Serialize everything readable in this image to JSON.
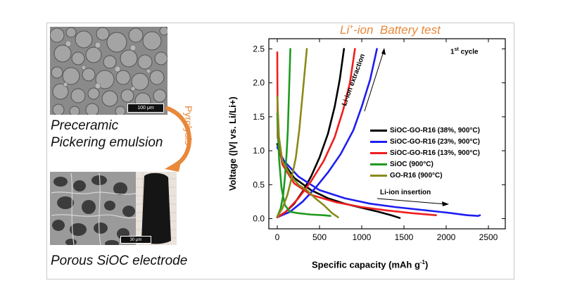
{
  "left_panel": {
    "top_scale": "100 μm",
    "top_caption_line1": "Preceramic",
    "top_caption_line2": "Pickering emulsion",
    "arrow_label": "Pyrolysis",
    "bottom_scale": "30 μm",
    "bottom_caption": "Porous SiOC electrode"
  },
  "colors": {
    "accent": "#e8883a",
    "black": "#000000",
    "blue": "#1e1ef0",
    "red": "#f01e1e",
    "green": "#1f9a1f",
    "olive": "#8a8a1a"
  },
  "chart_data": {
    "type": "line",
    "title": "Li⁺-ion  Battery test",
    "cycle_label": "1st cycle",
    "xlabel": "Specific capacity (mAh g⁻¹)",
    "ylabel": "Voltage (|V| vs. Li/Li+)",
    "xlim": [
      -100,
      2700
    ],
    "ylim": [
      -0.15,
      2.65
    ],
    "xticks": [
      0,
      500,
      1000,
      1500,
      2000,
      2500
    ],
    "yticks": [
      0.0,
      0.5,
      1.0,
      1.5,
      2.0,
      2.5
    ],
    "annotations": [
      "Li-ion extraction",
      "Li-ion insertion"
    ],
    "legend_position": "right",
    "series": [
      {
        "name": "SiOC-GO-R16 (38%, 900°C)",
        "color": "#000000",
        "insertion": [
          [
            0,
            1.1
          ],
          [
            60,
            0.85
          ],
          [
            200,
            0.6
          ],
          [
            400,
            0.42
          ],
          [
            600,
            0.3
          ],
          [
            800,
            0.22
          ],
          [
            1000,
            0.16
          ],
          [
            1200,
            0.1
          ],
          [
            1350,
            0.05
          ],
          [
            1450,
            0.01
          ]
        ],
        "extraction": [
          [
            0,
            0.02
          ],
          [
            100,
            0.1
          ],
          [
            200,
            0.22
          ],
          [
            300,
            0.4
          ],
          [
            400,
            0.62
          ],
          [
            500,
            0.9
          ],
          [
            600,
            1.25
          ],
          [
            680,
            1.65
          ],
          [
            740,
            2.05
          ],
          [
            790,
            2.5
          ]
        ]
      },
      {
        "name": "SiOC-GO-R16 (23%, 900°C)",
        "color": "#1e1ef0",
        "insertion": [
          [
            0,
            1.05
          ],
          [
            80,
            0.85
          ],
          [
            250,
            0.62
          ],
          [
            500,
            0.42
          ],
          [
            800,
            0.3
          ],
          [
            1100,
            0.22
          ],
          [
            1400,
            0.17
          ],
          [
            1700,
            0.13
          ],
          [
            2000,
            0.09
          ],
          [
            2250,
            0.05
          ],
          [
            2380,
            0.04
          ],
          [
            2400,
            0.05
          ]
        ],
        "extraction": [
          [
            0,
            0.02
          ],
          [
            150,
            0.1
          ],
          [
            300,
            0.25
          ],
          [
            450,
            0.45
          ],
          [
            600,
            0.68
          ],
          [
            750,
            0.95
          ],
          [
            900,
            1.3
          ],
          [
            1000,
            1.65
          ],
          [
            1100,
            2.05
          ],
          [
            1180,
            2.5
          ]
        ]
      },
      {
        "name": "SiOC-GO-R16 (13%, 900°C)",
        "color": "#f01e1e",
        "insertion": [
          [
            0,
            2.45
          ],
          [
            5,
            1.2
          ],
          [
            60,
            0.8
          ],
          [
            200,
            0.52
          ],
          [
            400,
            0.35
          ],
          [
            700,
            0.24
          ],
          [
            1000,
            0.17
          ],
          [
            1300,
            0.12
          ],
          [
            1600,
            0.08
          ],
          [
            1880,
            0.05
          ]
        ],
        "extraction": [
          [
            0,
            0.02
          ],
          [
            100,
            0.1
          ],
          [
            250,
            0.3
          ],
          [
            400,
            0.55
          ],
          [
            550,
            0.85
          ],
          [
            680,
            1.2
          ],
          [
            780,
            1.6
          ],
          [
            860,
            2.0
          ],
          [
            920,
            2.5
          ]
        ]
      },
      {
        "name": "SiOC (900°C)",
        "color": "#1f9a1f",
        "insertion": [
          [
            0,
            1.55
          ],
          [
            20,
            0.9
          ],
          [
            50,
            0.45
          ],
          [
            90,
            0.2
          ],
          [
            150,
            0.1
          ],
          [
            250,
            0.08
          ],
          [
            400,
            0.06
          ],
          [
            550,
            0.05
          ],
          [
            630,
            0.04
          ]
        ],
        "extraction": [
          [
            0,
            0.03
          ],
          [
            40,
            0.15
          ],
          [
            70,
            0.35
          ],
          [
            90,
            0.6
          ],
          [
            110,
            0.95
          ],
          [
            125,
            1.3
          ],
          [
            135,
            1.7
          ],
          [
            145,
            2.1
          ],
          [
            155,
            2.5
          ]
        ]
      },
      {
        "name": "GO-R16 (900°C)",
        "color": "#8a8a1a",
        "insertion": [
          [
            0,
            1.8
          ],
          [
            20,
            1.2
          ],
          [
            60,
            0.85
          ],
          [
            150,
            0.65
          ],
          [
            250,
            0.5
          ],
          [
            350,
            0.42
          ],
          [
            450,
            0.3
          ],
          [
            550,
            0.2
          ],
          [
            650,
            0.08
          ],
          [
            720,
            0.02
          ]
        ],
        "extraction": [
          [
            0,
            0.03
          ],
          [
            60,
            0.15
          ],
          [
            120,
            0.35
          ],
          [
            170,
            0.6
          ],
          [
            220,
            0.9
          ],
          [
            260,
            1.3
          ],
          [
            290,
            1.7
          ],
          [
            320,
            2.1
          ],
          [
            350,
            2.5
          ]
        ]
      }
    ]
  }
}
